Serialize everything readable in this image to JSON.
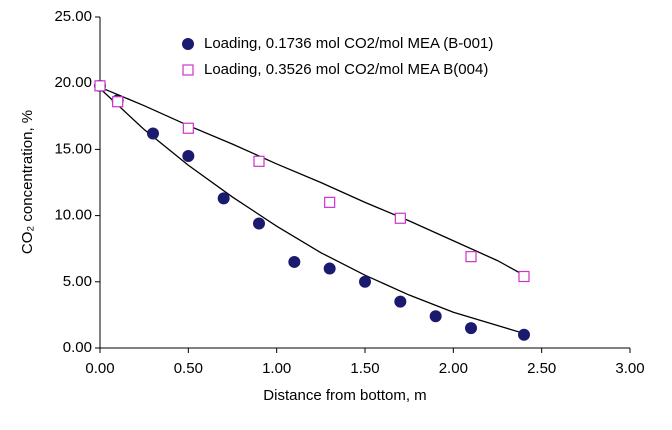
{
  "chart_data": {
    "type": "scatter",
    "x_label": "Distance from bottom, m",
    "y_label": "CO₂ concentration, %",
    "xlim": [
      0,
      3
    ],
    "xticks": [
      {
        "value": 0,
        "label": "0.00"
      },
      {
        "value": 0.5,
        "label": "0.50"
      },
      {
        "value": 1,
        "label": "1.00"
      },
      {
        "value": 1.5,
        "label": "1.50"
      },
      {
        "value": 2,
        "label": "2.00"
      },
      {
        "value": 2.5,
        "label": "2.50"
      },
      {
        "value": 3,
        "label": "3.00"
      }
    ],
    "ylim": [
      0,
      25
    ],
    "yticks": [
      {
        "value": 0,
        "label": "0.00"
      },
      {
        "value": 5,
        "label": "5.00"
      },
      {
        "value": 10,
        "label": "10.00"
      },
      {
        "value": 15,
        "label": "15.00"
      },
      {
        "value": 20,
        "label": "20.00"
      },
      {
        "value": 25,
        "label": "25.00"
      }
    ],
    "grid": false,
    "legend": "top-right",
    "trend_color": "#000000",
    "series": [
      {
        "name": "Loading, 0.1736 mol CO2/mol MEA (B-001)",
        "color": "#1a1a6e",
        "marker": "circle",
        "x": [
          0,
          0.1,
          0.3,
          0.5,
          0.7,
          0.9,
          1.1,
          1.3,
          1.5,
          1.7,
          1.9,
          2.1,
          2.4
        ],
        "values": [
          19.8,
          18.7,
          16.2,
          14.5,
          11.3,
          9.4,
          6.5,
          6.0,
          5.0,
          3.5,
          2.4,
          1.5,
          1.0
        ],
        "trend": {
          "x": [
            0,
            0.25,
            0.5,
            0.75,
            1,
            1.25,
            1.5,
            1.75,
            2,
            2.25,
            2.4
          ],
          "values": [
            19.6,
            16.5,
            13.8,
            11.4,
            9.2,
            7.2,
            5.5,
            4.0,
            2.7,
            1.7,
            1.1
          ]
        }
      },
      {
        "name": "Loading, 0.3526 mol CO2/mol MEA B(004)",
        "color": "#cc33cc",
        "marker": "square",
        "x": [
          0,
          0.1,
          0.5,
          0.9,
          1.3,
          1.7,
          2.1,
          2.4
        ],
        "values": [
          19.8,
          18.6,
          16.6,
          14.1,
          11.0,
          9.8,
          6.9,
          5.4
        ],
        "trend": {
          "x": [
            0,
            0.25,
            0.5,
            0.75,
            1,
            1.25,
            1.5,
            1.75,
            2,
            2.25,
            2.4
          ],
          "values": [
            19.7,
            18.3,
            16.8,
            15.4,
            13.9,
            12.5,
            11.0,
            9.6,
            8.1,
            6.6,
            5.5
          ]
        }
      }
    ]
  }
}
